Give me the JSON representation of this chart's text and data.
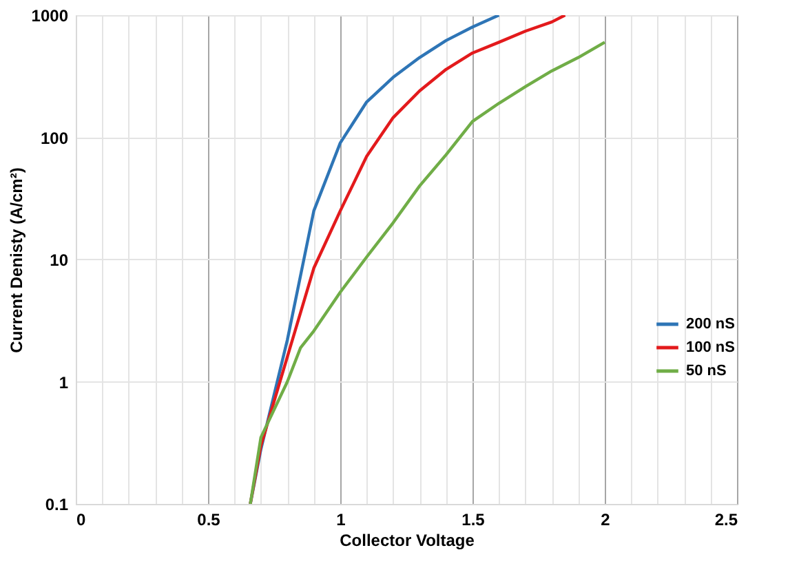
{
  "chart_data": {
    "type": "line",
    "xlabel": "Collector Voltage",
    "ylabel": "Current Denisty (A/cm²)",
    "log": "y",
    "grid": true,
    "legend": "right",
    "line_style": "solid",
    "marker": "none",
    "xlim": [
      0,
      2.5
    ],
    "ylim": [
      0.1,
      1000
    ],
    "xticks": [
      0,
      {
        "value": 0.1,
        "label": null
      },
      {
        "value": 0.2,
        "label": null
      },
      {
        "value": 0.3,
        "label": null
      },
      {
        "value": 0.4,
        "label": null
      },
      0.5,
      {
        "value": 0.6,
        "label": null
      },
      {
        "value": 0.7,
        "label": null
      },
      {
        "value": 0.8,
        "label": null
      },
      {
        "value": 0.9,
        "label": null
      },
      1,
      {
        "value": 1.1,
        "label": null
      },
      {
        "value": 1.2,
        "label": null
      },
      {
        "value": 1.3,
        "label": null
      },
      {
        "value": 1.4,
        "label": null
      },
      1.5,
      {
        "value": 1.6,
        "label": null
      },
      {
        "value": 1.7,
        "label": null
      },
      {
        "value": 1.8,
        "label": null
      },
      {
        "value": 1.9,
        "label": null
      },
      2,
      {
        "value": 2.1,
        "label": null
      },
      {
        "value": 2.2,
        "label": null
      },
      {
        "value": 2.3,
        "label": null
      },
      {
        "value": 2.4,
        "label": null
      },
      2.5
    ],
    "yticks": [
      0.1,
      1,
      10,
      100,
      1000
    ],
    "series": [
      {
        "name": "200 nS",
        "color": "#2e75b6",
        "x": [
          0.66,
          0.7,
          0.8,
          0.9,
          1.0,
          1.1,
          1.2,
          1.3,
          1.4,
          1.5,
          1.6
        ],
        "values": [
          0.1,
          0.28,
          2.2,
          25,
          90,
          195,
          310,
          450,
          620,
          800,
          1000
        ]
      },
      {
        "name": "100 nS",
        "color": "#e31a1c",
        "x": [
          0.66,
          0.7,
          0.8,
          0.9,
          1.0,
          1.1,
          1.2,
          1.3,
          1.4,
          1.5,
          1.6,
          1.7,
          1.8,
          1.85
        ],
        "values": [
          0.1,
          0.3,
          1.6,
          8.5,
          25,
          70,
          145,
          240,
          360,
          490,
          600,
          740,
          880,
          1000
        ]
      },
      {
        "name": "50 nS",
        "color": "#70ad47",
        "x": [
          0.66,
          0.7,
          0.8,
          0.85,
          0.9,
          1.0,
          1.1,
          1.2,
          1.3,
          1.4,
          1.5,
          1.6,
          1.7,
          1.8,
          1.9,
          2.0
        ],
        "values": [
          0.1,
          0.35,
          1.0,
          1.9,
          2.6,
          5.4,
          10.5,
          20,
          40,
          72,
          135,
          190,
          260,
          350,
          450,
          600
        ]
      }
    ]
  }
}
